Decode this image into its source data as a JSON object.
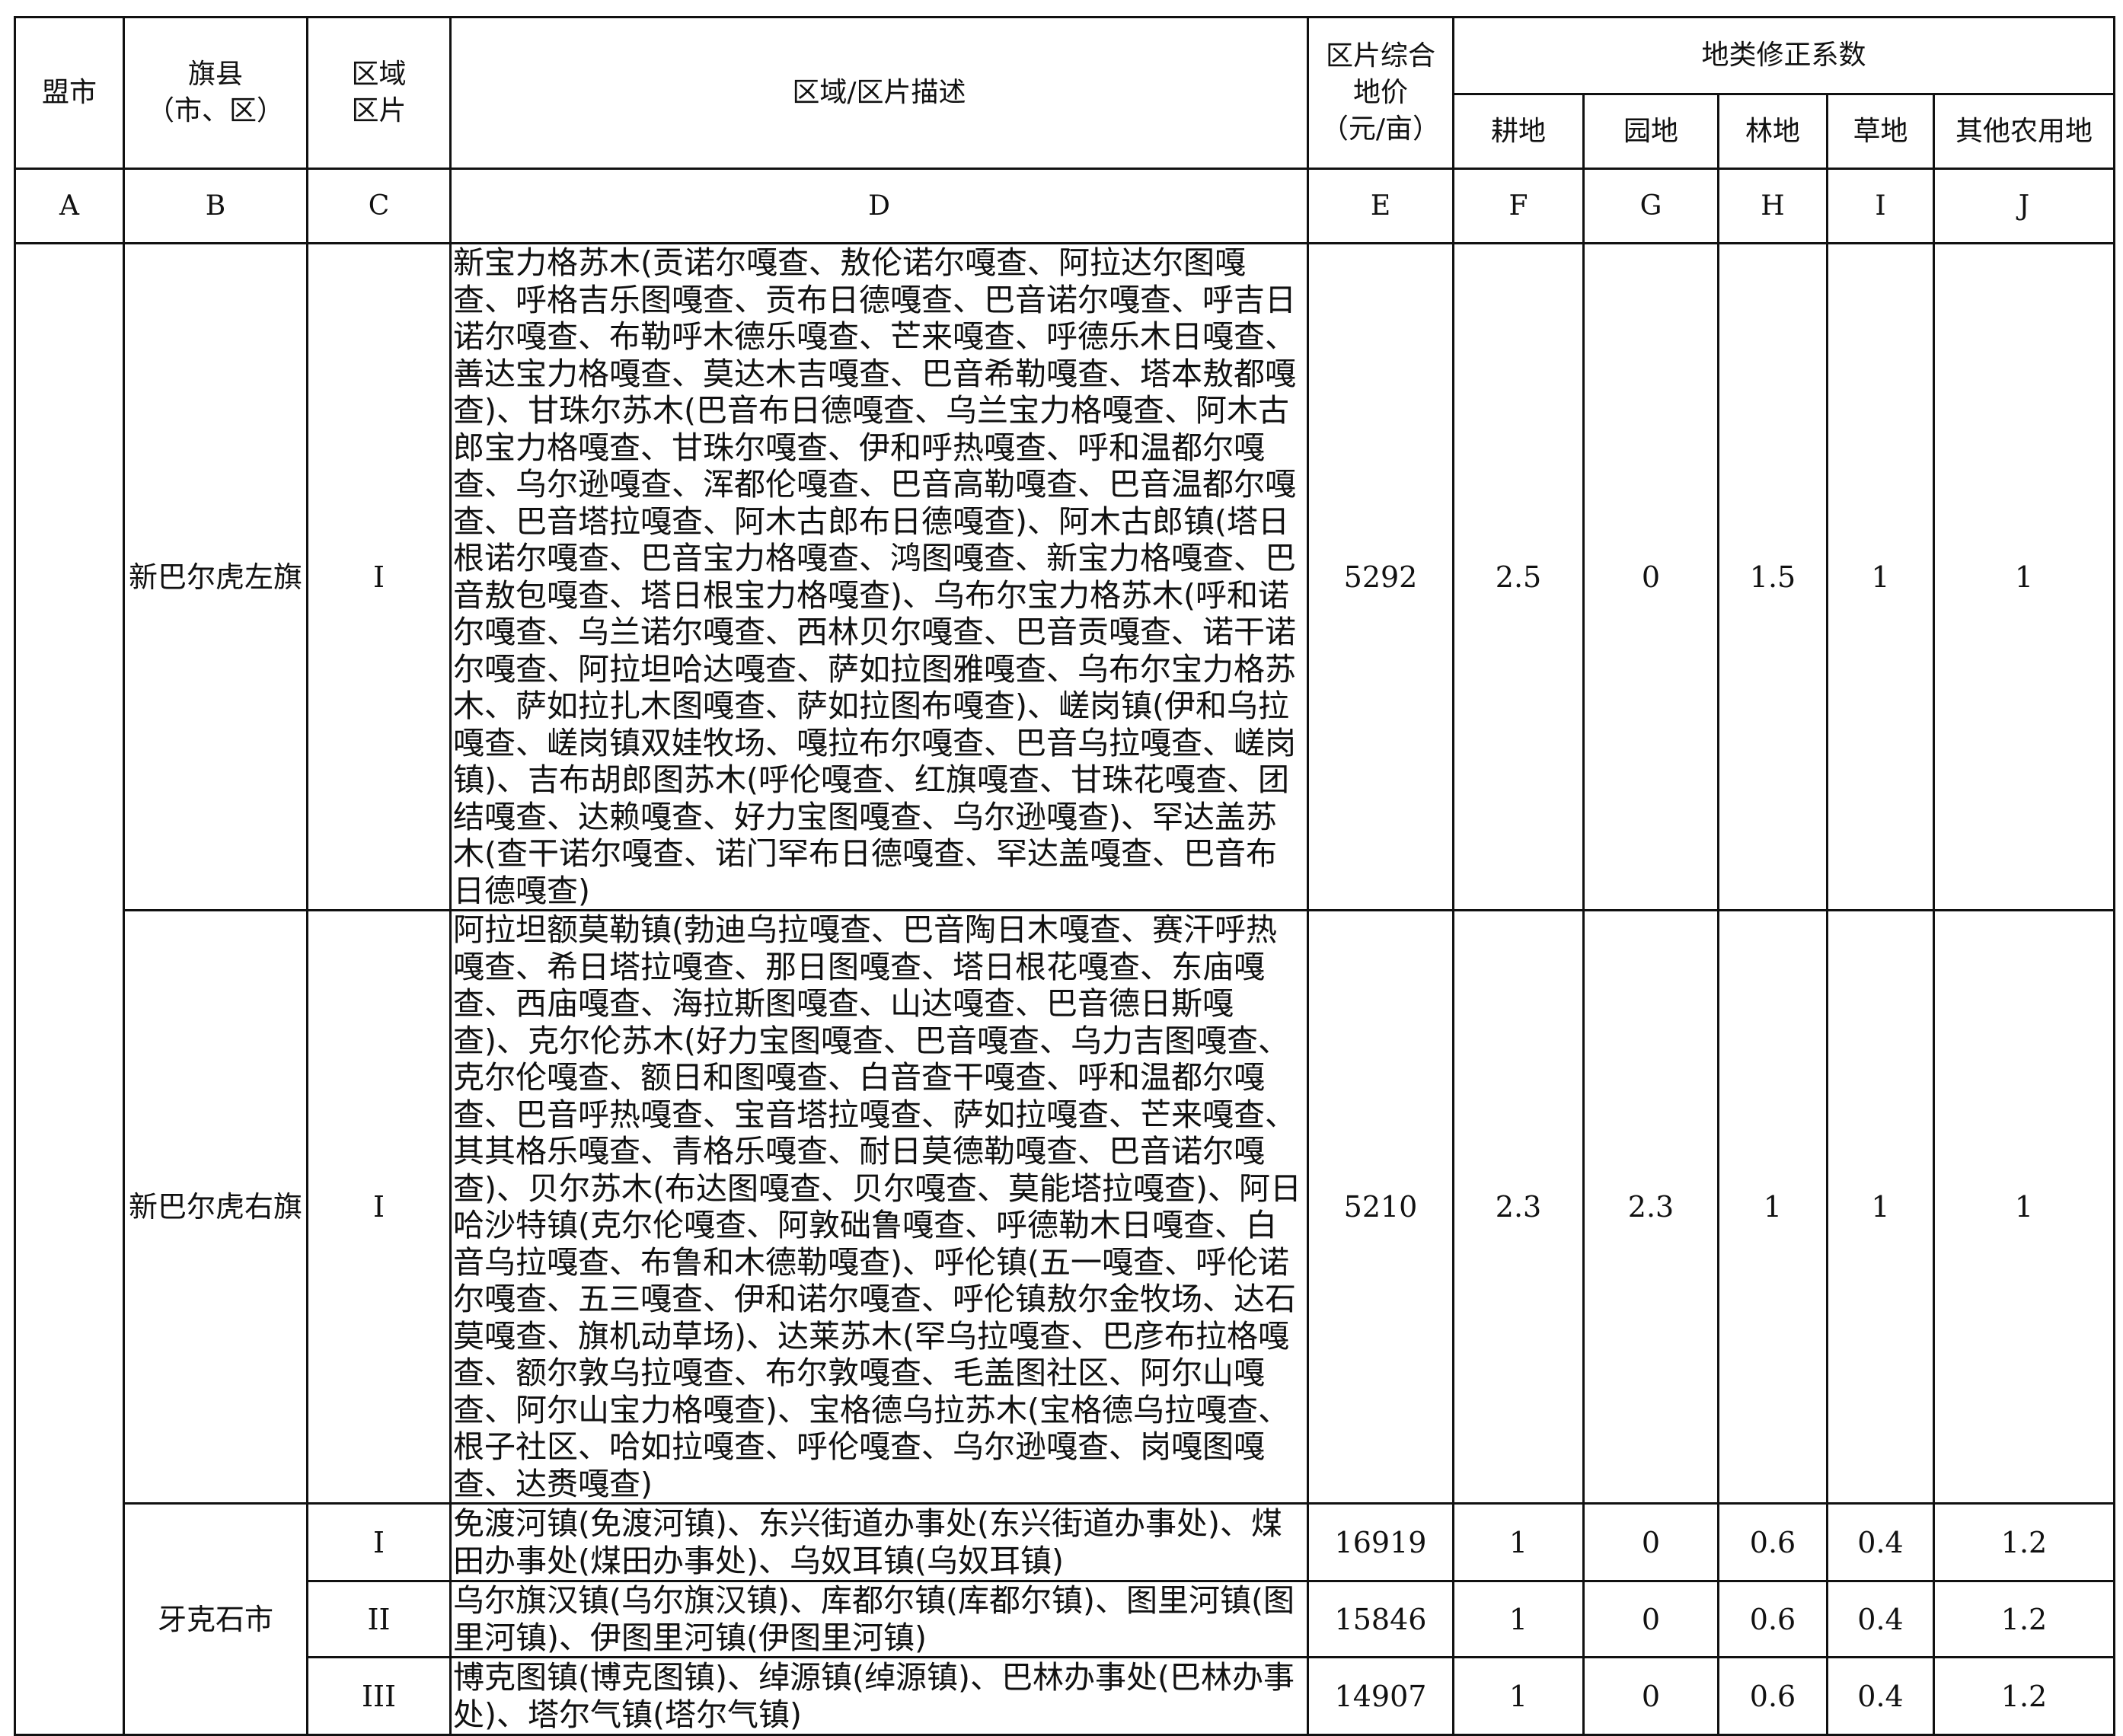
{
  "header": {
    "league_city": "盟市",
    "county": "旗县\n（市、区）",
    "zone": "区域\n区片",
    "description": "区域/区片描述",
    "price": "区片综合\n地价\n（元/亩）",
    "coef_group": "地类修正系数",
    "coefs": [
      "耕地",
      "园地",
      "林地",
      "草地",
      "其他农用地"
    ]
  },
  "letters": [
    "A",
    "B",
    "C",
    "D",
    "E",
    "F",
    "G",
    "H",
    "I",
    "J"
  ],
  "league_city_value": "",
  "rows": [
    {
      "county": "新巴尔虎左旗",
      "zone": "I",
      "description": "新宝力格苏木(贡诺尔嘎查、敖伦诺尔嘎查、阿拉达尔图嘎查、呼格吉乐图嘎查、贡布日德嘎查、巴音诺尔嘎查、呼吉日诺尔嘎查、布勒呼木德乐嘎查、芒来嘎查、呼德乐木日嘎查、善达宝力格嘎查、莫达木吉嘎查、巴音希勒嘎查、塔本敖都嘎查)、甘珠尔苏木(巴音布日德嘎查、乌兰宝力格嘎查、阿木古郎宝力格嘎查、甘珠尔嘎查、伊和呼热嘎查、呼和温都尔嘎查、乌尔逊嘎查、浑都伦嘎查、巴音高勒嘎查、巴音温都尔嘎查、巴音塔拉嘎查、阿木古郎布日德嘎查)、阿木古郎镇(塔日根诺尔嘎查、巴音宝力格嘎查、鸿图嘎查、新宝力格嘎查、巴音敖包嘎查、塔日根宝力格嘎查)、乌布尔宝力格苏木(呼和诺尔嘎查、乌兰诺尔嘎查、西林贝尔嘎查、巴音贡嘎查、诺干诺尔嘎查、阿拉坦哈达嘎查、萨如拉图雅嘎查、乌布尔宝力格苏木、萨如拉扎木图嘎查、萨如拉图布嘎查)、嵯岗镇(伊和乌拉嘎查、嵯岗镇双娃牧场、嘎拉布尔嘎查、巴音乌拉嘎查、嵯岗镇)、吉布胡郎图苏木(呼伦嘎查、红旗嘎查、甘珠花嘎查、团结嘎查、达赖嘎查、好力宝图嘎查、乌尔逊嘎查)、罕达盖苏木(查干诺尔嘎查、诺门罕布日德嘎查、罕达盖嘎查、巴音布日德嘎查)",
      "price": "5292",
      "coefs": [
        "2.5",
        "0",
        "1.5",
        "1",
        "1"
      ]
    },
    {
      "county": "新巴尔虎右旗",
      "zone": "I",
      "description": "阿拉坦额莫勒镇(勃迪乌拉嘎查、巴音陶日木嘎查、赛汗呼热嘎查、希日塔拉嘎查、那日图嘎查、塔日根花嘎查、东庙嘎查、西庙嘎查、海拉斯图嘎查、山达嘎查、巴音德日斯嘎查)、克尔伦苏木(好力宝图嘎查、巴音嘎查、乌力吉图嘎查、克尔伦嘎查、额日和图嘎查、白音查干嘎查、呼和温都尔嘎查、巴音呼热嘎查、宝音塔拉嘎查、萨如拉嘎查、芒来嘎查、其其格乐嘎查、青格乐嘎查、耐日莫德勒嘎查、巴音诺尔嘎查)、贝尔苏木(布达图嘎查、贝尔嘎查、莫能塔拉嘎查)、阿日哈沙特镇(克尔伦嘎查、阿敦础鲁嘎查、呼德勒木日嘎查、白音乌拉嘎查、布鲁和木德勒嘎查)、呼伦镇(五一嘎查、呼伦诺尔嘎查、五三嘎查、伊和诺尔嘎查、呼伦镇敖尔金牧场、达石莫嘎查、旗机动草场)、达莱苏木(罕乌拉嘎查、巴彦布拉格嘎查、额尔敦乌拉嘎查、布尔敦嘎查、毛盖图社区、阿尔山嘎查、阿尔山宝力格嘎查)、宝格德乌拉苏木(宝格德乌拉嘎查、根子社区、哈如拉嘎查、呼伦嘎查、乌尔逊嘎查、岗嘎图嘎查、达赉嘎查)",
      "price": "5210",
      "coefs": [
        "2.3",
        "2.3",
        "1",
        "1",
        "1"
      ]
    },
    {
      "county": "牙克石市",
      "zone": "I",
      "description": "免渡河镇(免渡河镇)、东兴街道办事处(东兴街道办事处)、煤田办事处(煤田办事处)、乌奴耳镇(乌奴耳镇)",
      "price": "16919",
      "coefs": [
        "1",
        "0",
        "0.6",
        "0.4",
        "1.2"
      ]
    },
    {
      "county": "牙克石市",
      "zone": "II",
      "description": "乌尔旗汉镇(乌尔旗汉镇)、库都尔镇(库都尔镇)、图里河镇(图里河镇)、伊图里河镇(伊图里河镇)",
      "price": "15846",
      "coefs": [
        "1",
        "0",
        "0.6",
        "0.4",
        "1.2"
      ]
    },
    {
      "county": "牙克石市",
      "zone": "III",
      "description": "博克图镇(博克图镇)、绰源镇(绰源镇)、巴林办事处(巴林办事处)、塔尔气镇(塔尔气镇)",
      "price": "14907",
      "coefs": [
        "1",
        "0",
        "0.6",
        "0.4",
        "1.2"
      ]
    }
  ]
}
